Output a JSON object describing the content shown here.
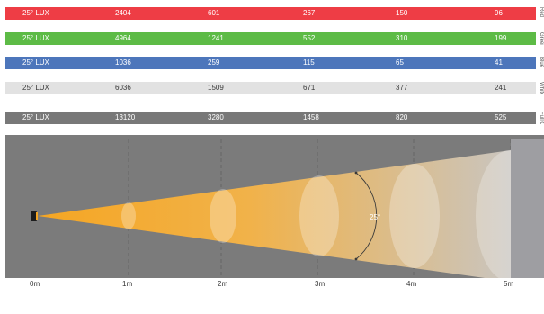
{
  "rows": [
    {
      "key": "red",
      "color": "#ee3d45",
      "text_color": "#ffffff",
      "side_label": "Red",
      "label": "25° LUX",
      "values": [
        "2404",
        "601",
        "267",
        "150",
        "96"
      ]
    },
    {
      "key": "green",
      "color": "#5dbb46",
      "text_color": "#ffffff",
      "side_label": "Green",
      "label": "25° LUX",
      "values": [
        "4964",
        "1241",
        "552",
        "310",
        "199"
      ]
    },
    {
      "key": "blue",
      "color": "#4d76bb",
      "text_color": "#ffffff",
      "side_label": "Blue",
      "label": "25° LUX",
      "values": [
        "1036",
        "259",
        "115",
        "65",
        "41"
      ]
    },
    {
      "key": "white",
      "color": "#e2e2e2",
      "text_color": "#3a3a3a",
      "side_label": "White",
      "label": "25° LUX",
      "values": [
        "6036",
        "1509",
        "671",
        "377",
        "241"
      ]
    },
    {
      "key": "full-on",
      "color": "#787878",
      "text_color": "#ffffff",
      "side_label": "Full On",
      "label": "25° LUX",
      "values": [
        "13120",
        "3280",
        "1458",
        "820",
        "525"
      ]
    }
  ],
  "beam": {
    "angle_label": "25°",
    "panel_color": "#7b7b7b",
    "beam_color_near": "#f5a623",
    "beam_color_far": "#c9c5c0"
  },
  "distances": [
    "0m",
    "1m",
    "2m",
    "3m",
    "4m",
    "5m"
  ]
}
